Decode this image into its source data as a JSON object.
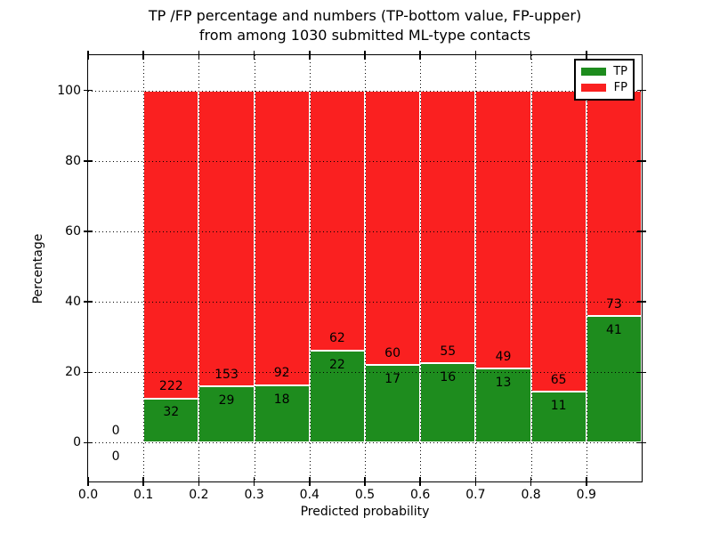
{
  "figure": {
    "title_line1": "TP /FP percentage and numbers (TP-bottom value, FP-upper)",
    "title_line2": "from among 1030 submitted ML-type contacts"
  },
  "axes": {
    "xlabel": "Predicted probability",
    "ylabel": "Percentage",
    "ytick_values": [
      0,
      20,
      40,
      60,
      80,
      100
    ],
    "ytick_labels": [
      "0",
      "20",
      "40",
      "60",
      "80",
      "100"
    ],
    "xtick_values": [
      0,
      0.1,
      0.2,
      0.3,
      0.4,
      0.5,
      0.6,
      0.7,
      0.8,
      0.9
    ],
    "xtick_labels": [
      "0.0",
      "0.1",
      "0.2",
      "0.3",
      "0.4",
      "0.5",
      "0.6",
      "0.7",
      "0.8",
      "0.9"
    ],
    "ylim": [
      -11,
      110
    ],
    "xlim": [
      0,
      1
    ],
    "grid_style": "dotted"
  },
  "legend": {
    "position": "upper right",
    "items": [
      {
        "label": "TP",
        "color": "#1e8c1e"
      },
      {
        "label": "FP",
        "color": "#fa2020"
      }
    ]
  },
  "chart_data": {
    "type": "bar",
    "stacked": true,
    "normalized_to_percent": 100,
    "title": "TP /FP percentage and numbers (TP-bottom value, FP-upper) from among 1030 submitted ML-type contacts",
    "xlabel": "Predicted probability",
    "ylabel": "Percentage",
    "xlim": [
      0,
      1
    ],
    "ylim": [
      -11,
      110
    ],
    "grid": true,
    "legend_position": "upper right",
    "bin_edges": [
      0.0,
      0.1,
      0.2,
      0.3,
      0.4,
      0.5,
      0.6,
      0.7,
      0.8,
      0.9,
      1.0
    ],
    "series": [
      {
        "name": "TP",
        "color": "#1e8c1e",
        "counts": [
          0,
          32,
          29,
          18,
          22,
          17,
          16,
          13,
          11,
          41
        ]
      },
      {
        "name": "FP",
        "color": "#fa2020",
        "counts": [
          0,
          222,
          153,
          92,
          62,
          60,
          55,
          49,
          65,
          73
        ]
      }
    ],
    "total_contacts": 1030
  }
}
